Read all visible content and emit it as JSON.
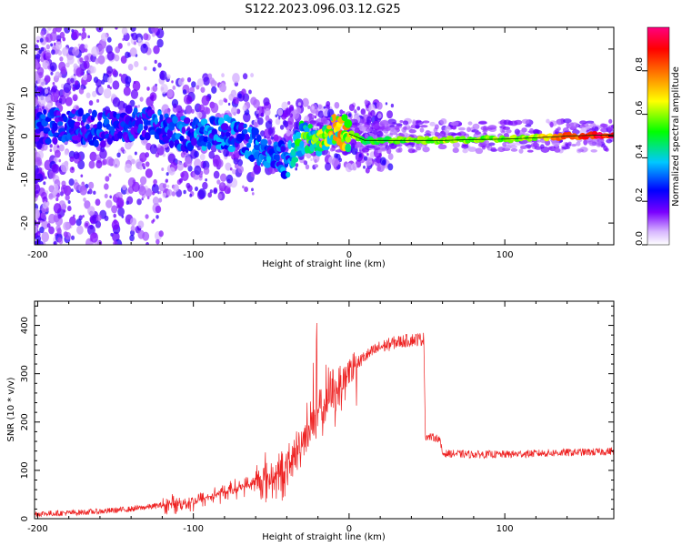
{
  "figure": {
    "title": "S122.2023.096.03.12.G25"
  },
  "chart_data": [
    {
      "type": "heatmap",
      "panel": "spectrogram",
      "xlabel": "Height of straight line (km)",
      "ylabel": "Frequency (Hz)",
      "xlim": [
        -202,
        170
      ],
      "ylim": [
        -25,
        25
      ],
      "xticks": [
        -200,
        -100,
        0,
        100
      ],
      "yticks": [
        -20,
        -10,
        0,
        10,
        20
      ],
      "grid": false,
      "colorbar": {
        "label": "Normalized spectral amplitude",
        "range": [
          0.0,
          1.0
        ],
        "ticks": [
          "0.0",
          "0.2",
          "0.4",
          "0.6",
          "0.8"
        ],
        "colors": [
          "#ffffff",
          "#7a00ff",
          "#0000ff",
          "#00c8ff",
          "#00ff00",
          "#ffff00",
          "#ff8000",
          "#ff0000",
          "#ff0080"
        ]
      },
      "ridge": {
        "x": [
          -200,
          -180,
          -160,
          -140,
          -120,
          -100,
          -80,
          -60,
          -50,
          -40,
          -35,
          -30,
          -20,
          -10,
          0,
          10,
          20,
          40,
          60,
          80,
          100,
          120,
          140,
          160,
          170
        ],
        "y": [
          2,
          2.5,
          1.5,
          3,
          2,
          0,
          1,
          -2,
          -4,
          -6,
          -3,
          0,
          -1,
          2,
          0.5,
          -1,
          -1,
          -1,
          -1,
          -0.8,
          -0.7,
          -0.4,
          0,
          0.2,
          0.3
        ],
        "amplitude": [
          0.25,
          0.25,
          0.25,
          0.25,
          0.28,
          0.3,
          0.3,
          0.3,
          0.3,
          0.3,
          0.4,
          0.5,
          0.55,
          0.6,
          0.7,
          0.5,
          0.55,
          0.6,
          0.65,
          0.6,
          0.6,
          0.65,
          0.85,
          0.95,
          0.95
        ]
      }
    },
    {
      "type": "line",
      "panel": "snr",
      "xlabel": "Height of straight line (km)",
      "ylabel": "SNR (10 * v/v)",
      "xlim": [
        -202,
        170
      ],
      "ylim": [
        0,
        450
      ],
      "xticks": [
        -200,
        -100,
        0,
        100
      ],
      "yticks": [
        0,
        100,
        200,
        300,
        400
      ],
      "grid": false,
      "color": "#ee2222",
      "x": [
        -202,
        -180,
        -160,
        -140,
        -120,
        -100,
        -80,
        -70,
        -60,
        -50,
        -40,
        -35,
        -30,
        -25,
        -22,
        -20,
        -15,
        -10,
        -5,
        0,
        10,
        20,
        30,
        40,
        48,
        49,
        55,
        58,
        60,
        80,
        100,
        120,
        140,
        160,
        170
      ],
      "y": [
        10,
        12,
        15,
        20,
        28,
        35,
        55,
        65,
        75,
        85,
        100,
        130,
        160,
        200,
        180,
        220,
        240,
        260,
        280,
        305,
        335,
        355,
        365,
        370,
        372,
        170,
        168,
        165,
        135,
        133,
        133,
        135,
        137,
        138,
        140
      ]
    }
  ]
}
